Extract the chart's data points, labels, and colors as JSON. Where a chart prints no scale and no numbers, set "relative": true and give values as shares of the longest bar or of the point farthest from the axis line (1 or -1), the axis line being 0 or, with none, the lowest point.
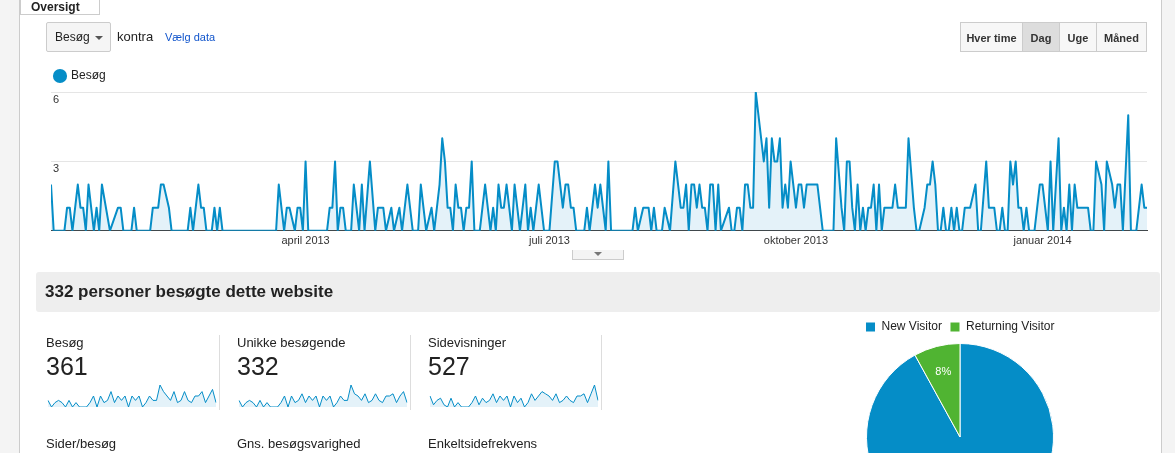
{
  "chart_data": [
    {
      "type": "other",
      "annotations": [
        "Oversigt",
        "Besøg",
        "kontra",
        "Vælg data",
        "Hver time",
        "Dag",
        "Uge",
        "Måned"
      ]
    },
    {
      "type": "area",
      "legend": "top left",
      "grid": "y",
      "ylim": [
        0,
        6
      ],
      "yticks": [
        3,
        6
      ],
      "xlim": [
        "2012-12-27",
        "2014-02-09"
      ],
      "xticks": [
        {
          "value": "2013-04-01",
          "label": "april 2013"
        },
        {
          "value": "2013-07-01",
          "label": "juli 2013"
        },
        {
          "value": "2013-10-01",
          "label": "oktober 2013"
        },
        {
          "value": "2014-01-01",
          "label": "januar 2014"
        }
      ],
      "series": [
        {
          "name": "Besøg",
          "color": "#058dc7",
          "x": [
            "2012-12-27",
            "2012-12-28",
            "2013-01-01",
            "2013-01-02",
            "2013-01-03",
            "2013-01-04",
            "2013-01-06",
            "2013-01-07",
            "2013-01-08",
            "2013-01-09",
            "2013-01-10",
            "2013-01-12",
            "2013-01-13",
            "2013-01-14",
            "2013-01-15",
            "2013-01-18",
            "2013-01-21",
            "2013-01-22",
            "2013-01-23",
            "2013-01-26",
            "2013-01-27",
            "2013-01-28",
            "2013-02-02",
            "2013-02-03",
            "2013-02-05",
            "2013-02-06",
            "2013-02-07",
            "2013-02-09",
            "2013-02-10",
            "2013-02-16",
            "2013-02-17",
            "2013-02-18",
            "2013-02-20",
            "2013-02-21",
            "2013-02-22",
            "2013-02-23",
            "2013-02-25",
            "2013-02-26",
            "2013-02-27",
            "2013-02-28",
            "2013-03-01",
            "2013-03-21",
            "2013-03-22",
            "2013-03-24",
            "2013-03-25",
            "2013-03-26",
            "2013-03-28",
            "2013-03-29",
            "2013-03-30",
            "2013-03-31",
            "2013-04-01",
            "2013-04-02",
            "2013-04-09",
            "2013-04-10",
            "2013-04-11",
            "2013-04-12",
            "2013-04-13",
            "2013-04-14",
            "2013-04-15",
            "2013-04-16",
            "2013-04-18",
            "2013-04-19",
            "2013-04-21",
            "2013-04-22",
            "2013-04-23",
            "2013-04-25",
            "2013-04-27",
            "2013-04-28",
            "2013-04-30",
            "2013-05-01",
            "2013-05-03",
            "2013-05-04",
            "2013-05-06",
            "2013-05-07",
            "2013-05-09",
            "2013-05-11",
            "2013-05-13",
            "2013-05-14",
            "2013-05-16",
            "2013-05-18",
            "2013-05-19",
            "2013-05-21",
            "2013-05-22",
            "2013-05-23",
            "2013-05-24",
            "2013-05-25",
            "2013-05-26",
            "2013-05-27",
            "2013-05-28",
            "2013-05-29",
            "2013-05-30",
            "2013-05-31",
            "2013-06-01",
            "2013-06-02",
            "2013-06-03",
            "2013-06-05",
            "2013-06-07",
            "2013-06-09",
            "2013-06-10",
            "2013-06-11",
            "2013-06-12",
            "2013-06-13",
            "2013-06-14",
            "2013-06-15",
            "2013-06-16",
            "2013-06-17",
            "2013-06-18",
            "2013-06-19",
            "2013-06-20",
            "2013-06-22",
            "2013-06-23",
            "2013-06-24",
            "2013-06-25",
            "2013-06-27",
            "2013-06-29",
            "2013-07-01",
            "2013-07-03",
            "2013-07-04",
            "2013-07-06",
            "2013-07-07",
            "2013-07-08",
            "2013-07-09",
            "2013-07-10",
            "2013-07-11",
            "2013-07-14",
            "2013-07-15",
            "2013-07-16",
            "2013-07-18",
            "2013-07-19",
            "2013-07-20",
            "2013-07-22",
            "2013-07-23",
            "2013-07-24",
            "2013-08-01",
            "2013-08-02",
            "2013-08-03",
            "2013-08-05",
            "2013-08-07",
            "2013-08-08",
            "2013-08-09",
            "2013-08-10",
            "2013-08-12",
            "2013-08-13",
            "2013-08-15",
            "2013-08-17",
            "2013-08-19",
            "2013-08-20",
            "2013-08-21",
            "2013-08-22",
            "2013-08-23",
            "2013-08-24",
            "2013-08-25",
            "2013-08-26",
            "2013-08-27",
            "2013-08-28",
            "2013-08-29",
            "2013-08-30",
            "2013-08-31",
            "2013-09-01",
            "2013-09-02",
            "2013-09-03",
            "2013-09-06",
            "2013-09-07",
            "2013-09-08",
            "2013-09-09",
            "2013-09-10",
            "2013-09-11",
            "2013-09-12",
            "2013-09-13",
            "2013-09-14",
            "2013-09-15",
            "2013-09-16",
            "2013-09-19",
            "2013-09-20",
            "2013-09-21",
            "2013-09-22",
            "2013-09-23",
            "2013-09-24",
            "2013-09-25",
            "2013-09-26",
            "2013-09-27",
            "2013-09-28",
            "2013-09-29",
            "2013-10-01",
            "2013-10-02",
            "2013-10-03",
            "2013-10-04",
            "2013-10-05",
            "2013-10-09",
            "2013-10-11",
            "2013-10-15",
            "2013-10-16",
            "2013-10-18",
            "2013-10-19",
            "2013-10-20",
            "2013-10-21",
            "2013-10-22",
            "2013-10-23",
            "2013-10-24",
            "2013-10-25",
            "2013-10-26",
            "2013-10-27",
            "2013-10-28",
            "2013-10-29",
            "2013-10-30",
            "2013-10-31",
            "2013-11-01",
            "2013-11-02",
            "2013-11-03",
            "2013-11-06",
            "2013-11-07",
            "2013-11-08",
            "2013-11-11",
            "2013-11-12",
            "2013-11-14",
            "2013-11-15",
            "2013-11-16",
            "2013-11-18",
            "2013-11-19",
            "2013-11-20",
            "2013-11-21",
            "2013-11-22",
            "2013-11-23",
            "2013-11-24",
            "2013-11-25",
            "2013-11-26",
            "2013-11-27",
            "2013-11-28",
            "2013-11-29",
            "2013-11-30",
            "2013-12-01",
            "2013-12-02",
            "2013-12-03",
            "2013-12-05",
            "2013-12-07",
            "2013-12-08",
            "2013-12-09",
            "2013-12-11",
            "2013-12-12",
            "2013-12-14",
            "2013-12-15",
            "2013-12-16",
            "2013-12-17",
            "2013-12-18",
            "2013-12-19",
            "2013-12-20",
            "2013-12-21",
            "2013-12-22",
            "2013-12-23",
            "2013-12-24",
            "2013-12-25",
            "2013-12-26",
            "2013-12-27",
            "2013-12-29",
            "2013-12-31",
            "2014-01-01",
            "2014-01-03",
            "2014-01-04",
            "2014-01-05",
            "2014-01-07",
            "2014-01-08",
            "2014-01-09",
            "2014-01-10",
            "2014-01-11",
            "2014-01-12",
            "2014-01-13",
            "2014-01-14",
            "2014-01-18",
            "2014-01-19",
            "2014-01-20",
            "2014-01-21",
            "2014-01-23",
            "2014-01-24",
            "2014-01-25",
            "2014-01-27",
            "2014-01-28",
            "2014-01-29",
            "2014-01-30",
            "2014-01-31",
            "2014-02-02",
            "2014-02-03",
            "2014-02-05",
            "2014-02-06",
            "2014-02-07",
            "2014-02-08",
            "2014-02-09"
          ],
          "values": [
            2,
            0,
            0,
            1,
            1,
            0,
            2,
            1,
            1,
            0,
            2,
            0,
            1,
            0,
            2,
            0,
            1,
            1,
            0,
            0,
            1,
            0,
            0,
            1,
            1,
            2,
            2,
            1,
            0,
            0,
            1,
            0,
            2,
            1,
            1,
            0,
            0,
            1,
            0,
            1,
            0,
            0,
            2,
            0,
            1,
            1,
            0,
            1,
            1,
            0,
            3,
            0,
            0,
            1,
            1,
            3,
            0,
            1,
            1,
            0,
            0,
            2,
            0,
            2,
            0,
            3,
            0,
            1,
            1,
            0,
            1,
            0,
            1,
            0,
            2,
            0,
            0,
            2,
            0,
            1,
            0,
            2,
            4,
            3,
            1,
            1,
            0,
            2,
            1,
            1,
            0,
            1,
            1,
            3,
            0,
            0,
            2,
            0,
            1,
            0,
            2,
            1,
            1,
            2,
            1,
            0,
            2,
            1,
            0,
            2,
            0,
            1,
            0,
            2,
            0,
            0,
            3,
            3,
            1,
            2,
            2,
            1,
            1,
            0,
            0,
            1,
            0,
            2,
            1,
            2,
            0,
            3,
            0,
            0,
            1,
            0,
            1,
            1,
            0,
            1,
            0,
            0,
            1,
            0,
            3,
            1,
            1,
            2,
            0,
            2,
            2,
            1,
            2,
            1,
            1,
            0,
            2,
            2,
            0,
            2,
            0,
            1,
            0,
            0,
            1,
            1,
            0,
            2,
            2,
            1,
            1,
            6,
            3,
            4,
            1,
            4,
            3,
            3,
            4,
            1,
            2,
            1,
            3,
            1,
            2,
            2,
            1,
            2,
            2,
            0,
            0,
            4,
            1,
            0,
            3,
            3,
            1,
            0,
            2,
            0,
            1,
            0,
            1,
            1,
            2,
            0,
            2,
            0,
            1,
            1,
            2,
            1,
            1,
            4,
            1,
            0,
            0,
            1,
            2,
            2,
            3,
            2,
            0,
            0,
            1,
            0,
            0,
            1,
            0,
            1,
            0,
            0,
            1,
            1,
            2,
            0,
            0,
            3,
            1,
            1,
            0,
            0,
            1,
            0,
            0,
            3,
            2,
            3,
            1,
            1,
            0,
            1,
            0,
            0,
            2,
            2,
            0,
            3,
            0,
            4,
            0,
            1,
            0,
            2,
            0,
            2,
            1,
            1,
            0,
            0,
            3,
            2,
            0,
            3,
            2,
            1,
            2,
            2,
            0,
            5,
            0,
            0,
            1,
            2,
            1,
            1
          ]
        }
      ]
    },
    {
      "type": "other",
      "title": "332 personer besøgte dette website"
    },
    {
      "type": "area",
      "title": "Besøg",
      "annotations": [
        "361"
      ],
      "relative": true,
      "color": "#058dc7",
      "categories": [
        null,
        null,
        null,
        null,
        null,
        null,
        null,
        null,
        null,
        null,
        null,
        null,
        null,
        null,
        null,
        null,
        null,
        null,
        null,
        null,
        null,
        null,
        null,
        null,
        null,
        null,
        null,
        null,
        null,
        null,
        null,
        null,
        null,
        null,
        null,
        null,
        null,
        null,
        null,
        null,
        null,
        null,
        null,
        null,
        null,
        null,
        null,
        null,
        null
      ],
      "values": [
        0.3,
        0,
        0.2,
        0.3,
        0.2,
        0,
        0.3,
        0,
        0.2,
        0,
        0,
        0,
        0.2,
        0.5,
        0,
        0.5,
        0.2,
        0.3,
        0.7,
        0.2,
        0.5,
        0.3,
        0.5,
        0,
        0.5,
        0.3,
        0.5,
        0,
        0.2,
        0.5,
        0.3,
        0.3,
        1,
        0.7,
        0.5,
        0.3,
        0.7,
        0.2,
        0.3,
        0.7,
        0.3,
        0.2,
        0.5,
        0.5,
        0.7,
        0.2,
        0.5,
        0.8,
        0.2
      ]
    },
    {
      "type": "area",
      "title": "Unikke besøgende",
      "annotations": [
        "332"
      ],
      "relative": true,
      "color": "#058dc7",
      "categories": [
        null,
        null,
        null,
        null,
        null,
        null,
        null,
        null,
        null,
        null,
        null,
        null,
        null,
        null,
        null,
        null,
        null,
        null,
        null,
        null,
        null,
        null,
        null,
        null,
        null,
        null,
        null,
        null,
        null,
        null,
        null,
        null,
        null,
        null,
        null,
        null,
        null,
        null,
        null,
        null,
        null,
        null,
        null,
        null,
        null,
        null,
        null,
        null,
        null
      ],
      "values": [
        0.3,
        0,
        0.2,
        0.3,
        0.2,
        0,
        0.3,
        0,
        0.2,
        0,
        0,
        0,
        0.2,
        0.5,
        0,
        0.5,
        0.2,
        0.3,
        0.6,
        0.2,
        0.5,
        0.3,
        0.5,
        0,
        0.5,
        0.3,
        0.5,
        0,
        0.2,
        0.5,
        0.3,
        0.3,
        1,
        0.6,
        0.5,
        0.3,
        0.6,
        0.2,
        0.3,
        0.6,
        0.3,
        0.2,
        0.5,
        0.5,
        0.6,
        0.2,
        0.5,
        0.7,
        0.2
      ]
    },
    {
      "type": "area",
      "title": "Sidevisninger",
      "annotations": [
        "527"
      ],
      "relative": true,
      "color": "#058dc7",
      "categories": [
        null,
        null,
        null,
        null,
        null,
        null,
        null,
        null,
        null,
        null,
        null,
        null,
        null,
        null,
        null,
        null,
        null,
        null,
        null,
        null,
        null,
        null,
        null,
        null,
        null,
        null,
        null,
        null,
        null,
        null,
        null,
        null,
        null,
        null,
        null,
        null,
        null,
        null,
        null,
        null,
        null,
        null,
        null,
        null,
        null,
        null,
        null,
        null,
        null
      ],
      "values": [
        0.5,
        0.1,
        0.3,
        0.4,
        0.1,
        0,
        0.4,
        0,
        0.2,
        0,
        0,
        0,
        0.2,
        0.5,
        0.1,
        0.4,
        0.2,
        0.3,
        0.6,
        0.2,
        0.5,
        0.3,
        0.5,
        0,
        0.5,
        0.2,
        0.4,
        0,
        0.2,
        0.6,
        0.3,
        0.5,
        0.7,
        0.6,
        0.5,
        0.3,
        0.6,
        0.2,
        0.3,
        0.5,
        0.3,
        0.2,
        0.5,
        0.5,
        0.6,
        0.2,
        0.6,
        1,
        0.3
      ]
    },
    {
      "type": "other",
      "title": "Sider/besøg"
    },
    {
      "type": "other",
      "title": "Gns. besøgsvarighed"
    },
    {
      "type": "other",
      "title": "Enkeltsidefrekvens"
    },
    {
      "type": "pie",
      "categories": [
        "New Visitor",
        "Returning Visitor"
      ],
      "values": [
        92,
        8
      ],
      "colors": [
        "#058dc7",
        "#50b432"
      ],
      "value_labels": [
        null,
        "8%"
      ],
      "legend": "top"
    }
  ]
}
